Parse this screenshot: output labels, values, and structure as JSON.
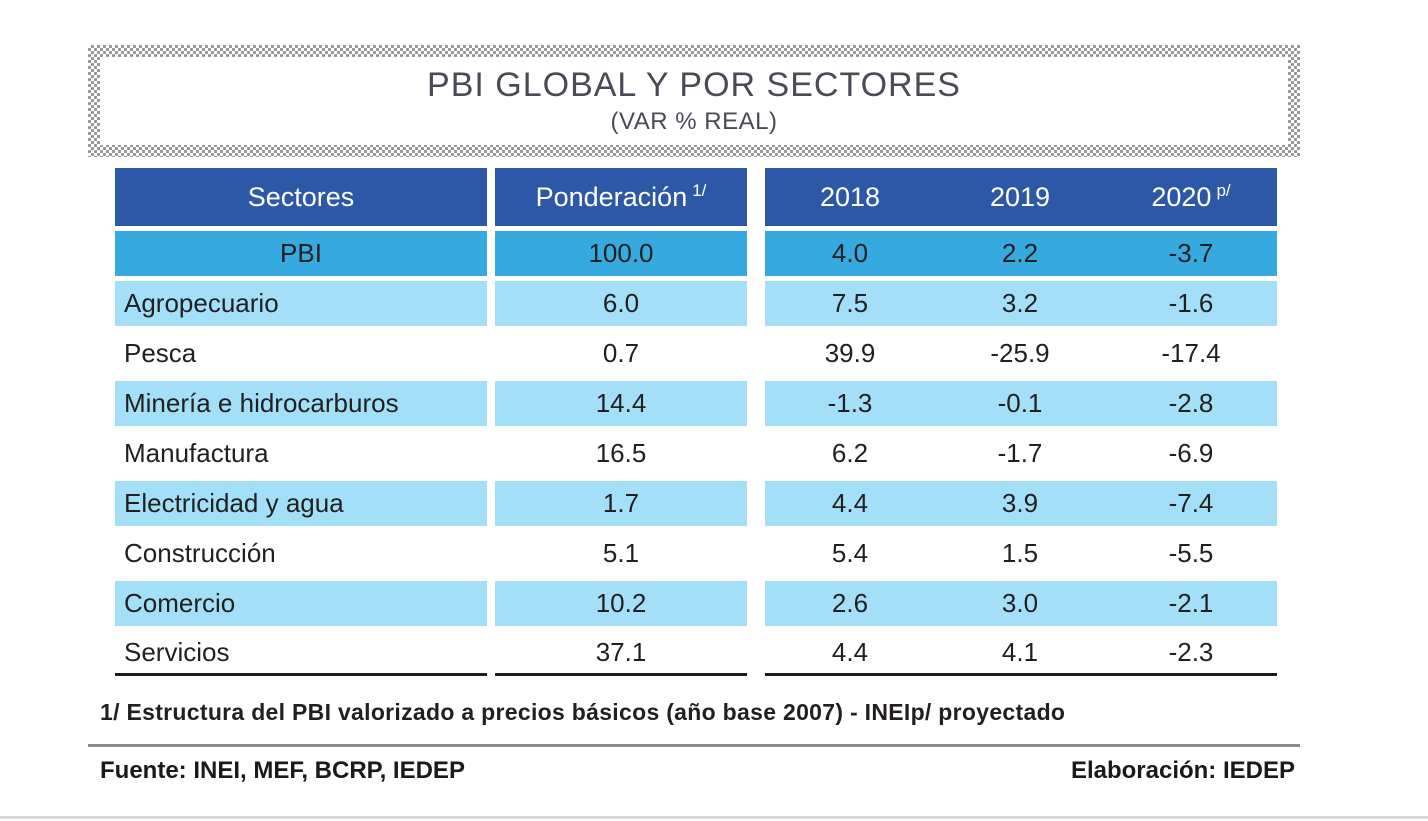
{
  "title": {
    "main": "PBI GLOBAL Y POR SECTORES",
    "subtitle": "(VAR % REAL)"
  },
  "table": {
    "headers": {
      "sectors": "Sectores",
      "weight": "Ponderación",
      "weight_sup": "1/",
      "years": [
        "2018",
        "2019",
        "2020"
      ],
      "year_sup": "p/"
    },
    "rows": [
      {
        "sector": "PBI",
        "weight": "100.0",
        "y2018": "4.0",
        "y2019": "2.2",
        "y2020": "-3.7"
      },
      {
        "sector": "Agropecuario",
        "weight": "6.0",
        "y2018": "7.5",
        "y2019": "3.2",
        "y2020": "-1.6"
      },
      {
        "sector": "Pesca",
        "weight": "0.7",
        "y2018": "39.9",
        "y2019": "-25.9",
        "y2020": "-17.4"
      },
      {
        "sector": "Minería e hidrocarburos",
        "weight": "14.4",
        "y2018": "-1.3",
        "y2019": "-0.1",
        "y2020": "-2.8"
      },
      {
        "sector": "Manufactura",
        "weight": "16.5",
        "y2018": "6.2",
        "y2019": "-1.7",
        "y2020": "-6.9"
      },
      {
        "sector": "Electricidad y agua",
        "weight": "1.7",
        "y2018": "4.4",
        "y2019": "3.9",
        "y2020": "-7.4"
      },
      {
        "sector": "Construcción",
        "weight": "5.1",
        "y2018": "5.4",
        "y2019": "1.5",
        "y2020": "-5.5"
      },
      {
        "sector": "Comercio",
        "weight": "10.2",
        "y2018": "2.6",
        "y2019": "3.0",
        "y2020": "-2.1"
      },
      {
        "sector": "Servicios",
        "weight": "37.1",
        "y2018": "4.4",
        "y2019": "4.1",
        "y2020": "-2.3"
      }
    ]
  },
  "footnote": "1/ Estructura del PBI valorizado a precios básicos (año base 2007) - INEIp/ proyectado",
  "footer": {
    "source": "Fuente: INEI, MEF, BCRP, IEDEP",
    "elaboration": "Elaboración: IEDEP"
  },
  "colors": {
    "header_bg": "#2d57a7",
    "pbi_row_bg": "#36a9de",
    "alt_row_bg": "#a3e0f7",
    "title_text": "#4a4a58",
    "text_dark": "#231f20"
  },
  "chart_data": {
    "type": "table",
    "title": "PBI GLOBAL Y POR SECTORES (VAR % REAL)",
    "columns": [
      "Sectores",
      "Ponderación 1/",
      "2018",
      "2019",
      "2020 p/"
    ],
    "rows": [
      [
        "PBI",
        100.0,
        4.0,
        2.2,
        -3.7
      ],
      [
        "Agropecuario",
        6.0,
        7.5,
        3.2,
        -1.6
      ],
      [
        "Pesca",
        0.7,
        39.9,
        -25.9,
        -17.4
      ],
      [
        "Minería e hidrocarburos",
        14.4,
        -1.3,
        -0.1,
        -2.8
      ],
      [
        "Manufactura",
        16.5,
        6.2,
        -1.7,
        -6.9
      ],
      [
        "Electricidad y agua",
        1.7,
        4.4,
        3.9,
        -7.4
      ],
      [
        "Construcción",
        5.1,
        5.4,
        1.5,
        -5.5
      ],
      [
        "Comercio",
        10.2,
        2.6,
        3.0,
        -2.1
      ],
      [
        "Servicios",
        37.1,
        4.4,
        4.1,
        -2.3
      ]
    ],
    "notes": [
      "1/ Estructura del PBI valorizado a precios básicos (año base 2007) - INEI",
      "p/ proyectado"
    ],
    "source": "Fuente: INEI, MEF, BCRP, IEDEP",
    "elaboration": "Elaboración: IEDEP"
  }
}
